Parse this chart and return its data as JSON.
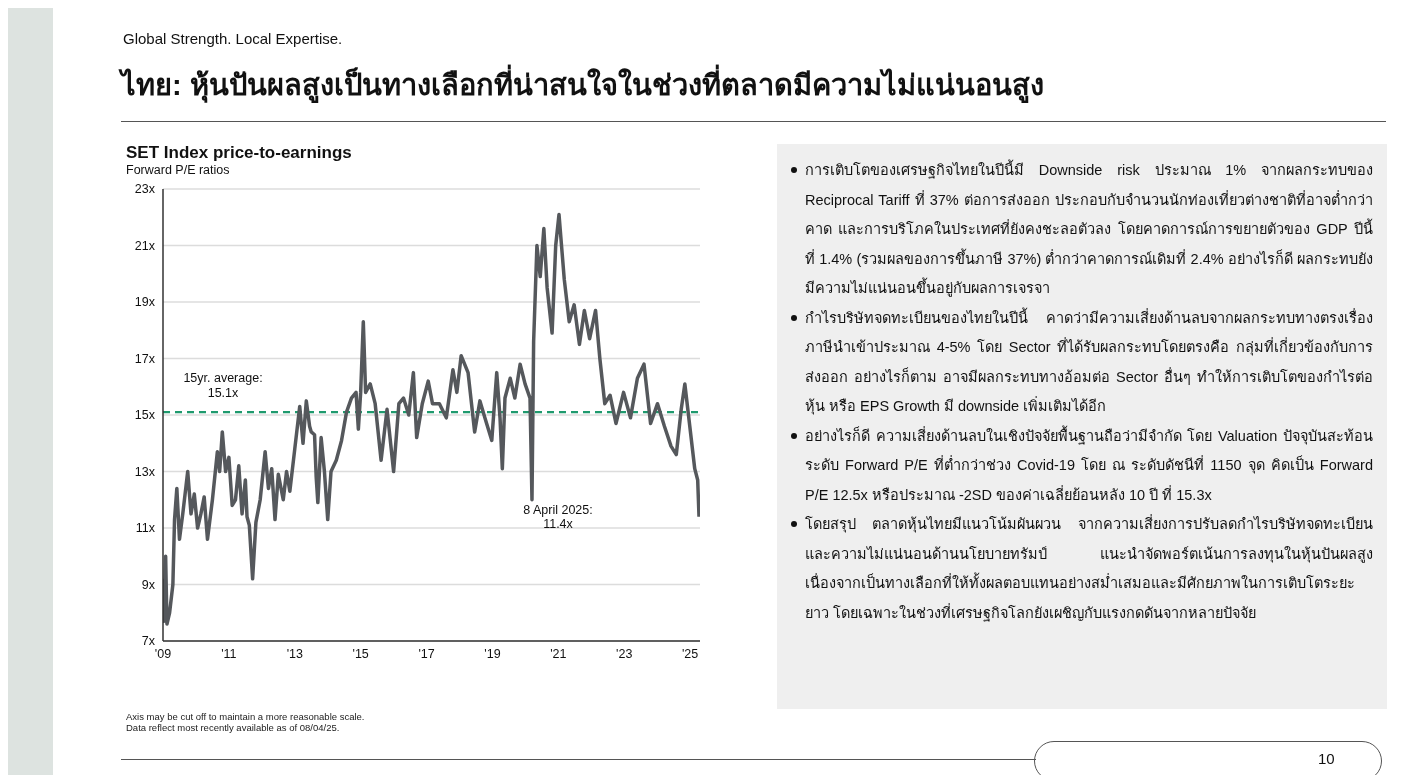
{
  "chart_data": [
    {
      "type": "other",
      "subtitle": "Global Strength. Local Expertise.",
      "title": "ไทย: หุ้นปันผลสูงเป็นทางเลือกที่น่าสนใจในช่วงที่ตลาดมีความไม่แน่นอนสูง",
      "annotations": [
        "10"
      ]
    },
    {
      "type": "line",
      "title": "SET Index price-to-earnings",
      "subtitle": "Forward P/E ratios",
      "color": "#55585c",
      "x": [
        2009.0,
        2009.03,
        2009.08,
        2009.12,
        2009.2,
        2009.3,
        2009.35,
        2009.42,
        2009.5,
        2009.6,
        2009.7,
        2009.75,
        2009.85,
        2009.95,
        2010.05,
        2010.15,
        2010.25,
        2010.35,
        2010.5,
        2010.65,
        2010.72,
        2010.8,
        2010.9,
        2011.0,
        2011.1,
        2011.2,
        2011.3,
        2011.4,
        2011.5,
        2011.55,
        2011.62,
        2011.72,
        2011.82,
        2011.95,
        2012.1,
        2012.2,
        2012.3,
        2012.4,
        2012.5,
        2012.65,
        2012.75,
        2012.85,
        2013.0,
        2013.15,
        2013.25,
        2013.35,
        2013.45,
        2013.5,
        2013.6,
        2013.65,
        2013.7,
        2013.8,
        2013.9,
        2014.0,
        2014.1,
        2014.26,
        2014.42,
        2014.57,
        2014.72,
        2014.86,
        2014.93,
        2015.0,
        2015.08,
        2015.15,
        2015.29,
        2015.44,
        2015.62,
        2015.8,
        2016.0,
        2016.16,
        2016.3,
        2016.46,
        2016.6,
        2016.7,
        2016.87,
        2017.05,
        2017.18,
        2017.39,
        2017.6,
        2017.8,
        2017.92,
        2018.05,
        2018.26,
        2018.46,
        2018.62,
        2018.77,
        2018.98,
        2019.13,
        2019.23,
        2019.3,
        2019.38,
        2019.54,
        2019.68,
        2019.84,
        2019.99,
        2020.14,
        2020.2,
        2020.25,
        2020.35,
        2020.45,
        2020.56,
        2020.66,
        2020.81,
        2020.92,
        2021.02,
        2021.18,
        2021.33,
        2021.48,
        2021.64,
        2021.79,
        2021.95,
        2022.13,
        2022.26,
        2022.41,
        2022.57,
        2022.75,
        2022.98,
        2023.19,
        2023.4,
        2023.6,
        2023.8,
        2024.01,
        2024.22,
        2024.42,
        2024.58,
        2024.73,
        2024.84,
        2024.99,
        2025.14,
        2025.23,
        2025.27
      ],
      "values": [
        9.2,
        7.7,
        10.0,
        7.6,
        8.0,
        9.0,
        11.3,
        12.4,
        10.6,
        11.5,
        12.5,
        13.0,
        11.5,
        12.2,
        11.0,
        11.5,
        12.1,
        10.6,
        12.0,
        13.7,
        13.0,
        14.4,
        13.0,
        13.5,
        11.8,
        12.0,
        13.2,
        11.5,
        12.7,
        11.4,
        11.1,
        9.2,
        11.2,
        12.0,
        13.7,
        12.4,
        13.1,
        11.3,
        12.9,
        12.0,
        13.0,
        12.3,
        13.8,
        15.3,
        14.0,
        15.5,
        14.6,
        14.4,
        14.3,
        12.8,
        11.9,
        14.2,
        13.0,
        11.3,
        13.0,
        13.4,
        14.1,
        15.1,
        15.6,
        15.8,
        14.5,
        15.8,
        18.3,
        15.8,
        16.1,
        15.4,
        13.4,
        15.2,
        13.0,
        15.4,
        15.6,
        15.0,
        16.5,
        14.2,
        15.4,
        16.2,
        15.4,
        15.4,
        14.9,
        16.6,
        15.8,
        17.1,
        16.5,
        14.4,
        15.5,
        14.9,
        14.1,
        16.5,
        14.9,
        13.1,
        15.6,
        16.3,
        15.6,
        16.8,
        16.1,
        15.6,
        12.0,
        17.6,
        21.0,
        19.9,
        21.6,
        19.5,
        17.9,
        21.0,
        22.1,
        19.8,
        18.3,
        18.9,
        17.5,
        18.7,
        17.7,
        18.7,
        17.0,
        15.4,
        15.7,
        14.7,
        15.8,
        14.9,
        16.3,
        16.8,
        14.7,
        15.4,
        14.6,
        13.9,
        13.6,
        15.2,
        16.1,
        14.6,
        13.1,
        12.7,
        11.4
      ],
      "xlim": [
        2009,
        2025.3
      ],
      "xticks": [
        {
          "value": 2009,
          "label": "'09"
        },
        {
          "value": 2011,
          "label": "'11"
        },
        {
          "value": 2013,
          "label": "'13"
        },
        {
          "value": 2015,
          "label": "'15"
        },
        {
          "value": 2017,
          "label": "'17"
        },
        {
          "value": 2019,
          "label": "'19"
        },
        {
          "value": 2021,
          "label": "'21"
        },
        {
          "value": 2023,
          "label": "'23"
        },
        {
          "value": 2025,
          "label": "'25"
        }
      ],
      "ylim": [
        7,
        23
      ],
      "yticks": [
        {
          "value": 7,
          "label": "7x"
        },
        {
          "value": 9,
          "label": "9x"
        },
        {
          "value": 11,
          "label": "11x"
        },
        {
          "value": 13,
          "label": "13x"
        },
        {
          "value": 15,
          "label": "15x"
        },
        {
          "value": 17,
          "label": "17x"
        },
        {
          "value": 19,
          "label": "19x"
        },
        {
          "value": 21,
          "label": "21x"
        },
        {
          "value": 23,
          "label": "23x"
        }
      ],
      "grid": "y",
      "marker": "none",
      "line_style": "solid",
      "ref_lines": [
        {
          "axis": "y",
          "value": 15.1,
          "label": "15yr. average:\n15.1x",
          "color": "#1f9a6e",
          "line_style": "dashed"
        }
      ],
      "annotations": [
        "8 April 2025:\n11.4x",
        "Axis may be cut off to maintain a more reasonable scale.",
        "Data reflect most recently available as of 08/04/25."
      ]
    },
    {
      "type": "other",
      "annotations": [
        "การเติบโตของเศรษฐกิจไทยในปีนี้มี Downside risk ประมาณ 1% จากผลกระทบของ Reciprocal Tariff ที่ 37% ต่อการส่งออก ประกอบกับจำนวนนักท่องเที่ยวต่างชาติที่อาจต่ำกว่าคาด และการบริโภคในประเทศที่ยังคงชะลอตัวลง โดยคาดการณ์การขยายตัวของ GDP ปีนี้ที่ 1.4% (รวมผลของการขึ้นภาษี 37%) ต่ำกว่าคาดการณ์เดิมที่ 2.4% อย่างไรก็ดี ผลกระทบยังมีความไม่แน่นอนขึ้นอยู่กับผลการเจรจา",
        "กำไรบริษัทจดทะเบียนของไทยในปีนี้ คาดว่ามีความเสี่ยงด้านลบจากผลกระทบทางตรงเรื่องภาษีนำเข้าประมาณ 4-5% โดย Sector ที่ได้รับผลกระทบโดยตรงคือ กลุ่มที่เกี่ยวข้องกับการส่งออก อย่างไรก็ตาม อาจมีผลกระทบทางอ้อมต่อ Sector อื่นๆ ทำให้การเติบโตของกำไรต่อหุ้น หรือ EPS Growth มี downside เพิ่มเติมได้อีก",
        "อย่างไรก็ดี ความเสี่ยงด้านลบในเชิงปัจจัยพื้นฐานถือว่ามีจำกัด โดย Valuation ปัจจุบันสะท้อนระดับ Forward P/E ที่ต่ำกว่าช่วง Covid-19 โดย ณ ระดับดัชนีที่ 1150 จุด คิดเป็น Forward P/E 12.5x หรือประมาณ -2SD ของค่าเฉลี่ยย้อนหลัง 10 ปี ที่ 15.3x",
        "โดยสรุป ตลาดหุ้นไทยมีแนวโน้มผันผวน จากความเสี่ยงการปรับลดกำไรบริษัทจดทะเบียนและความไม่แน่นอนด้านนโยบายทรัมป์ แนะนำจัดพอร์ตเน้นการลงทุนในหุ้นปันผลสูง เนื่องจากเป็นทางเลือกที่ให้ทั้งผลตอบแทนอย่างสม่ำเสมอและมีศักยภาพในการเติบโตระยะยาว โดยเฉพาะในช่วงที่เศรษฐกิจโลกยังเผชิญกับแรงกดดันจากหลายปัจจัย"
      ]
    }
  ]
}
